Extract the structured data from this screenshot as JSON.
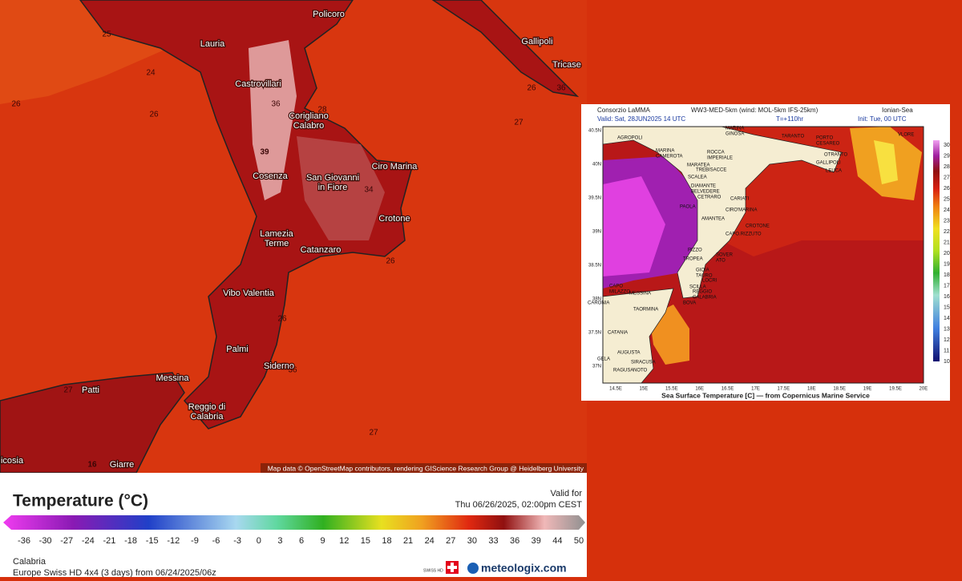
{
  "map": {
    "places": [
      {
        "lines": [
          "Policoro"
        ]
      },
      {
        "lines": [
          "Lauria"
        ]
      },
      {
        "lines": [
          "Castrovillari"
        ]
      },
      {
        "lines": [
          "Corigliano",
          "Calabro"
        ]
      },
      {
        "lines": [
          "Cosenza"
        ]
      },
      {
        "lines": [
          "San Giovanni",
          "in Fiore"
        ]
      },
      {
        "lines": [
          "Ciro Marina"
        ]
      },
      {
        "lines": [
          "Crotone"
        ]
      },
      {
        "lines": [
          "Lamezia",
          "Terme"
        ]
      },
      {
        "lines": [
          "Catanzaro"
        ]
      },
      {
        "lines": [
          "Vibo Valentia"
        ]
      },
      {
        "lines": [
          "Palmi"
        ]
      },
      {
        "lines": [
          "Siderno"
        ]
      },
      {
        "lines": [
          "Messina"
        ]
      },
      {
        "lines": [
          "Reggio di",
          "Calabria"
        ]
      },
      {
        "lines": [
          "Patti"
        ]
      },
      {
        "lines": [
          "Giarre"
        ]
      },
      {
        "lines": [
          "icosia"
        ]
      },
      {
        "lines": [
          "Gallipoli"
        ]
      },
      {
        "lines": [
          "Tricase"
        ]
      }
    ],
    "contour_labels": [
      25,
      24,
      26,
      26,
      36,
      28,
      39,
      27,
      34,
      26,
      26,
      36,
      27,
      27,
      36,
      26,
      16
    ],
    "attribution": "Map data © OpenStreetMap contributors, rendering GIScience Research Group @ Heidelberg University"
  },
  "legend": {
    "title": "Temperature (°C)",
    "valid_label": "Valid for",
    "valid_time": "Thu 06/26/2025, 02:00pm CEST",
    "scale": [
      -36,
      -30,
      -27,
      -24,
      -21,
      -18,
      -15,
      -12,
      -9,
      -6,
      -3,
      0,
      3,
      6,
      9,
      12,
      15,
      18,
      21,
      24,
      27,
      30,
      33,
      36,
      39,
      44,
      50
    ],
    "region": "Calabria",
    "model": "Europe Swiss HD 4x4 (3 days) from 06/24/2025/06z",
    "badge": "SWISS HD",
    "brand": "meteologix.com"
  },
  "inset": {
    "source": "Consorzio LaMMA",
    "model": "WW3-MED-5km (wind: MOL-5km IFS-25km)",
    "area": "Ionian-Sea",
    "valid": "Valid: Sat, 28JUN2025  14 UTC",
    "lead": "T=+110hr",
    "init": "Init: Tue, 00 UTC",
    "lat_ticks": [
      "40.5N",
      "40N",
      "39.5N",
      "39N",
      "38.5N",
      "38N",
      "37.5N",
      "37N"
    ],
    "lon_ticks": [
      "14.5E",
      "15E",
      "15.5E",
      "16E",
      "16.5E",
      "17E",
      "17.5E",
      "18E",
      "18.5E",
      "19E",
      "19.5E",
      "20E"
    ],
    "scale": [
      30,
      29,
      28,
      27,
      26,
      25,
      24,
      23,
      22,
      21,
      20,
      19,
      18,
      17,
      16,
      15,
      14,
      13,
      12,
      11,
      10
    ],
    "caption": "Sea Surface Temperature [C] — from Copernicus Marine Service",
    "places": [
      "AGROPOLI",
      "MARINA",
      "CAMEROTA",
      "ROCCA",
      "IMPERIALE",
      "TREBISACCE",
      "MARATEA",
      "SCALEA",
      "DIAMANTE",
      "BELVEDERE",
      "CETRARO",
      "CARIATI",
      "PAOLA",
      "CIRO'MARINA",
      "AMANTEA",
      "CROTONE",
      "CAPO.RIZZUTO",
      "PIZZO",
      "SOVER",
      "ATO",
      "TROPEA",
      "GIOIA",
      "TAURO",
      "LOCRI",
      "SCILLA",
      "REGGIO",
      "CALABRIA",
      "MESSINA",
      "CAPO",
      "MILAZZO",
      "BOVA",
      "CARONIA",
      "TAORMINA",
      "CATANIA",
      "AUGUSTA",
      "SIRACUSA",
      "GELA",
      "RAGUSA",
      "NOTO",
      "MARINA",
      "GINOSA",
      "TARANTO",
      "PORTO",
      "CESAREO",
      "OTRANTO",
      "GALLIPOLI",
      "LEUCA",
      "VLORE"
    ]
  }
}
